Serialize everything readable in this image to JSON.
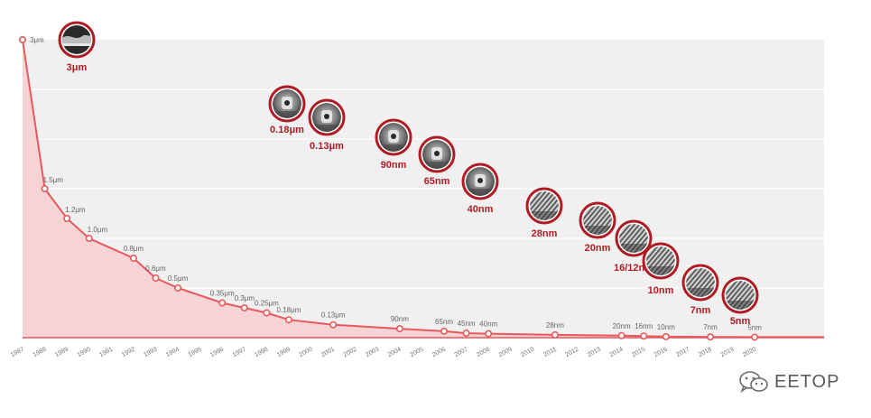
{
  "chart_data": {
    "type": "area",
    "title": "",
    "xlabel": "",
    "ylabel": "",
    "unit": "nm",
    "ylim": [
      0,
      3000
    ],
    "grid": true,
    "years": [
      "1987",
      "1988",
      "1989",
      "1990",
      "1991",
      "1992",
      "1993",
      "1994",
      "1995",
      "1996",
      "1997",
      "1998",
      "1999",
      "2000",
      "2001",
      "2002",
      "2003",
      "2004",
      "2005",
      "2006",
      "2007",
      "2008",
      "2009",
      "2010",
      "2011",
      "2012",
      "2013",
      "2014",
      "2015",
      "2016",
      "2017",
      "2018",
      "2019",
      "2020"
    ],
    "points": [
      {
        "year": "1987",
        "value": 3000,
        "label": "3μm"
      },
      {
        "year": "1988",
        "value": 1500,
        "label": "1.5μm"
      },
      {
        "year": "1989",
        "value": 1200,
        "label": "1.2μm"
      },
      {
        "year": "1990",
        "value": 1000,
        "label": "1.0μm"
      },
      {
        "year": "1992",
        "value": 800,
        "label": "0.8μm"
      },
      {
        "year": "1993",
        "value": 600,
        "label": "0.6μm"
      },
      {
        "year": "1994",
        "value": 500,
        "label": "0.5μm"
      },
      {
        "year": "1996",
        "value": 350,
        "label": "0.35μm"
      },
      {
        "year": "1997",
        "value": 300,
        "label": "0.3μm"
      },
      {
        "year": "1998",
        "value": 250,
        "label": "0.25μm"
      },
      {
        "year": "1999",
        "value": 180,
        "label": "0.18μm"
      },
      {
        "year": "2001",
        "value": 130,
        "label": "0.13μm"
      },
      {
        "year": "2004",
        "value": 90,
        "label": "90nm"
      },
      {
        "year": "2006",
        "value": 65,
        "label": "65nm"
      },
      {
        "year": "2007",
        "value": 45,
        "label": "45nm"
      },
      {
        "year": "2008",
        "value": 40,
        "label": "40nm"
      },
      {
        "year": "2011",
        "value": 28,
        "label": "28nm"
      },
      {
        "year": "2014",
        "value": 20,
        "label": "20nm"
      },
      {
        "year": "2015",
        "value": 16,
        "label": "16nm"
      },
      {
        "year": "2016",
        "value": 10,
        "label": "10nm"
      },
      {
        "year": "2018",
        "value": 7,
        "label": "7nm"
      },
      {
        "year": "2020",
        "value": 5,
        "label": "5nm"
      }
    ],
    "milestones": [
      {
        "label": "3μm",
        "icon": "wafer-cross-section-icon"
      },
      {
        "label": "0.18μm",
        "icon": "transistor-micrograph-icon"
      },
      {
        "label": "0.13μm",
        "icon": "transistor-micrograph-icon"
      },
      {
        "label": "90nm",
        "icon": "transistor-micrograph-icon"
      },
      {
        "label": "65nm",
        "icon": "transistor-micrograph-icon"
      },
      {
        "label": "40nm",
        "icon": "transistor-micrograph-icon"
      },
      {
        "label": "28nm",
        "icon": "finfet-micrograph-icon"
      },
      {
        "label": "20nm",
        "icon": "finfet-micrograph-icon"
      },
      {
        "label": "16/12nm",
        "icon": "finfet-micrograph-icon"
      },
      {
        "label": "10nm",
        "icon": "finfet-micrograph-icon"
      },
      {
        "label": "7nm",
        "icon": "finfet-micrograph-icon"
      },
      {
        "label": "5nm",
        "icon": "finfet-micrograph-icon"
      }
    ],
    "colors": {
      "line": "#e8585c",
      "area": "#f6d4d5",
      "bubble_ring": "#b01c24",
      "bubble_label": "#b01c24",
      "plot_bg": "#f0f0f0"
    }
  },
  "watermark": {
    "text": "EETOP",
    "icon": "wechat-logo-icon"
  }
}
